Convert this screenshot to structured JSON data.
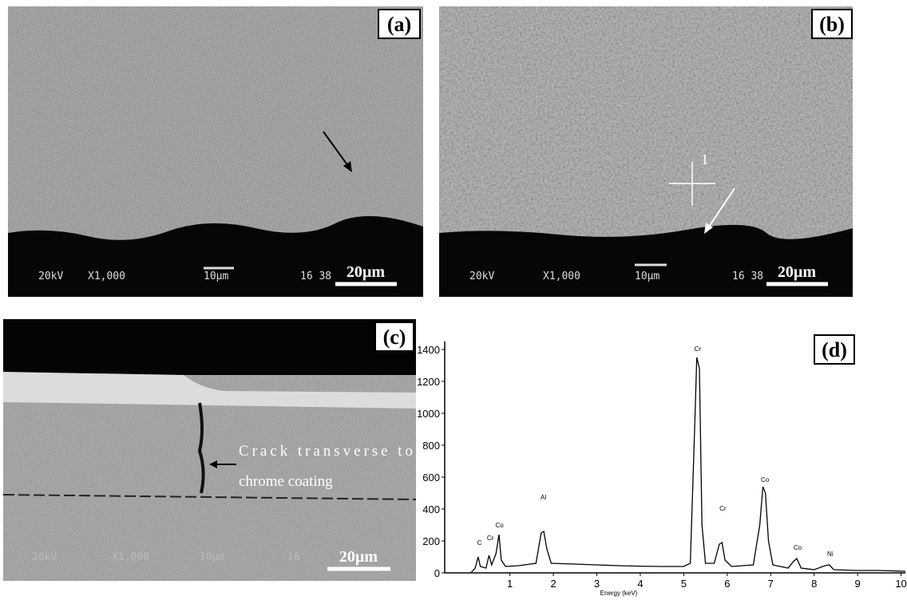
{
  "panels": [
    {
      "label": "(a)",
      "scale_bar": "20µm",
      "info": [
        "20kV",
        "X1,000",
        "10µm",
        "16 38"
      ]
    },
    {
      "label": "(b)",
      "scale_bar": "20µm",
      "info": [
        "20kV",
        "X1,000",
        "10µm",
        "16 38"
      ],
      "point_label": "1"
    },
    {
      "label": "(c)",
      "scale_bar": "20µm",
      "info": [
        "20kV",
        "X1,000",
        "10µm",
        "16"
      ],
      "annotation": [
        "Crack transverse to",
        "chrome coating"
      ]
    }
  ],
  "chart_data": {
    "type": "line",
    "label": "(d)",
    "x_label": "Energy (keV)",
    "color": "#000000",
    "x": [
      0.1,
      0.2,
      0.27,
      0.32,
      0.45,
      0.52,
      0.58,
      0.68,
      0.75,
      0.8,
      0.9,
      1.2,
      1.6,
      1.72,
      1.78,
      1.85,
      1.95,
      2.5,
      3.0,
      3.5,
      4.0,
      4.5,
      5.0,
      5.15,
      5.25,
      5.3,
      5.36,
      5.42,
      5.5,
      5.7,
      5.82,
      5.88,
      5.95,
      6.1,
      6.6,
      6.75,
      6.82,
      6.88,
      6.95,
      7.05,
      7.4,
      7.52,
      7.6,
      7.7,
      8.0,
      8.25,
      8.35,
      8.45,
      9.0,
      9.5,
      10.1
    ],
    "values": [
      0,
      30,
      100,
      40,
      30,
      110,
      50,
      120,
      240,
      80,
      40,
      45,
      60,
      250,
      260,
      150,
      60,
      55,
      50,
      45,
      42,
      40,
      40,
      60,
      900,
      1350,
      1280,
      300,
      60,
      60,
      180,
      190,
      80,
      40,
      50,
      300,
      540,
      500,
      200,
      50,
      30,
      70,
      90,
      30,
      20,
      45,
      50,
      20,
      15,
      15,
      10
    ],
    "xlim": [
      -0.5,
      10.1
    ],
    "xticks": [
      1,
      2,
      3,
      4,
      5,
      6,
      7,
      8,
      9,
      10
    ],
    "ylim": [
      0,
      1450
    ],
    "yticks": [
      0,
      200,
      400,
      600,
      800,
      1000,
      1200,
      1400
    ],
    "peak_labels": [
      {
        "text": "C",
        "x": 0.3,
        "y": 175
      },
      {
        "text": "Cr",
        "x": 0.55,
        "y": 205
      },
      {
        "text": "Co",
        "x": 0.76,
        "y": 285
      },
      {
        "text": "Al",
        "x": 1.77,
        "y": 460
      },
      {
        "text": "Cr",
        "x": 5.32,
        "y": 1390
      },
      {
        "text": "Cr",
        "x": 5.9,
        "y": 390
      },
      {
        "text": "Co",
        "x": 6.87,
        "y": 570
      },
      {
        "text": "Co",
        "x": 7.62,
        "y": 145
      },
      {
        "text": "Ni",
        "x": 8.37,
        "y": 105
      }
    ]
  }
}
